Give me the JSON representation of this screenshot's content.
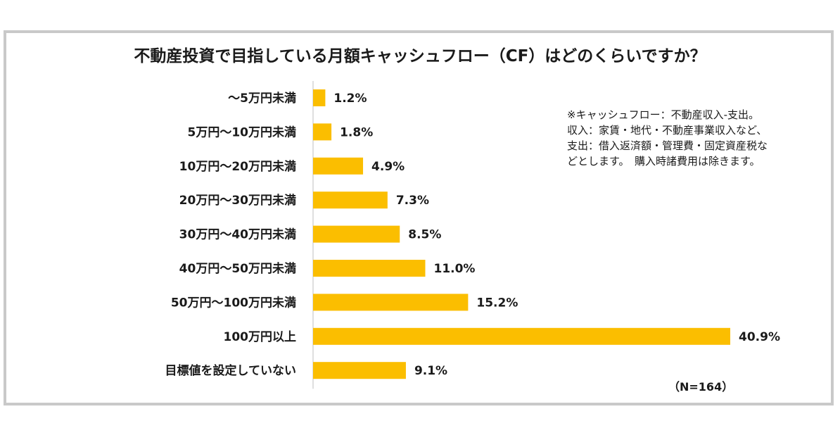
{
  "chart_data": {
    "type": "bar",
    "orientation": "horizontal",
    "title": "不動産投資で目指している月額キャッシュフロー（CF）はどのくらいですか？",
    "categories": [
      "～5万円未満",
      "5万円～10万円未満",
      "10万円～20万円未満",
      "20万円～30万円未満",
      "30万円～40万円未満",
      "40万円～50万円未満",
      "50万円～100万円未満",
      "100万円以上",
      "目標値を設定していない"
    ],
    "values": [
      1.2,
      1.8,
      4.9,
      7.3,
      8.5,
      11.0,
      15.2,
      40.9,
      9.1
    ],
    "value_labels": [
      "1.2%",
      "1.8%",
      "4.9%",
      "7.3%",
      "8.5%",
      "11.0%",
      "15.2%",
      "40.9%",
      "9.1%"
    ],
    "unit": "%",
    "xlim": [
      0,
      41
    ],
    "grid": false,
    "legend": "none",
    "bar_color": "#fbbe00",
    "sample_size": "（N=164）",
    "note_lines": [
      "※キャッシュフロー：不動産収入-支出。",
      "収入：家賃・地代・不動産事業収入など、",
      "支出：借入返済額・管理費・固定資産税な",
      "どとします。　購入時諸費用は除きます。"
    ]
  }
}
